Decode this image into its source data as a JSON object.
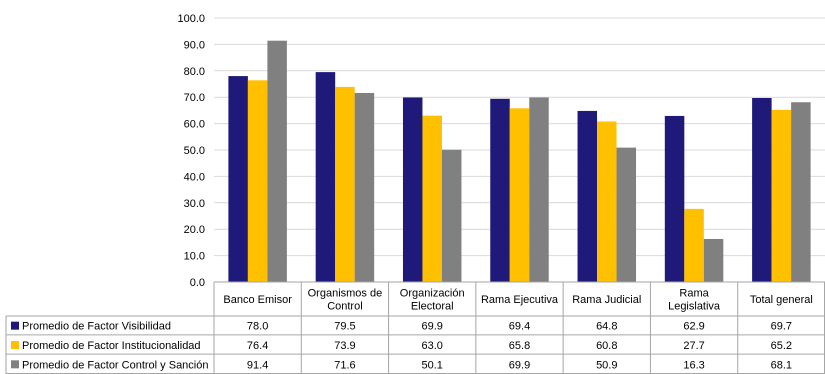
{
  "chart_data": {
    "type": "bar",
    "categories": [
      "Banco Emisor",
      "Organismos de Control",
      "Organización Electoral",
      "Rama Ejecutiva",
      "Rama Judicial",
      "Rama Legislativa",
      "Total general"
    ],
    "category_lines": [
      [
        "Banco Emisor"
      ],
      [
        "Organismos de",
        "Control"
      ],
      [
        "Organización",
        "Electoral"
      ],
      [
        "Rama Ejecutiva"
      ],
      [
        "Rama Judicial"
      ],
      [
        "Rama",
        "Legislativa"
      ],
      [
        "Total general"
      ]
    ],
    "series": [
      {
        "name": "Promedio de Factor Visibilidad",
        "color": "#1F1A7A",
        "values": [
          78.0,
          79.5,
          69.9,
          69.4,
          64.8,
          62.9,
          69.7
        ],
        "labels": [
          "78.0",
          "79.5",
          "69.9",
          "69.4",
          "64.8",
          "62.9",
          "69.7"
        ]
      },
      {
        "name": "Promedio de Factor Institucionalidad",
        "color": "#FFC000",
        "values": [
          76.4,
          73.9,
          63.0,
          65.8,
          60.8,
          27.7,
          65.2
        ],
        "labels": [
          "76.4",
          "73.9",
          "63.0",
          "65.8",
          "60.8",
          "27.7",
          "65.2"
        ]
      },
      {
        "name": "Promedio de Factor Control y Sanción",
        "color": "#808080",
        "values": [
          91.4,
          71.6,
          50.1,
          69.9,
          50.9,
          16.3,
          68.1
        ],
        "labels": [
          "91.4",
          "71.6",
          "50.1",
          "69.9",
          "50.9",
          "16.3",
          "68.1"
        ]
      }
    ],
    "yticks": [
      "0.0",
      "10.0",
      "20.0",
      "30.0",
      "40.0",
      "50.0",
      "60.0",
      "70.0",
      "80.0",
      "90.0",
      "100.0"
    ],
    "ylim": [
      0,
      100
    ],
    "grid": true,
    "legend": "data-table-left",
    "title": "",
    "xlabel": "",
    "ylabel": ""
  }
}
